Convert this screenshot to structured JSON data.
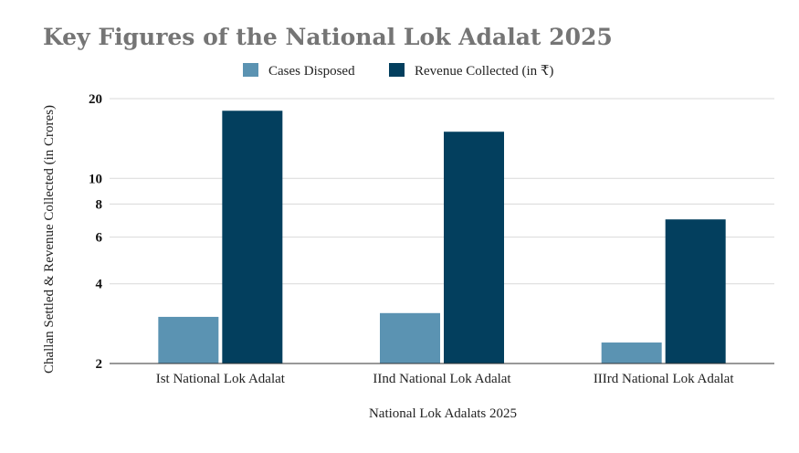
{
  "chart_data": {
    "type": "bar",
    "title": "Key Figures of the National Lok Adalat 2025",
    "categories": [
      "Ist National Lok Adalat",
      "IInd National Lok Adalat",
      "IIIrd National Lok Adalat"
    ],
    "series": [
      {
        "name": "Cases Disposed",
        "color": "#5b93b2",
        "values": [
          3.0,
          3.1,
          2.4
        ]
      },
      {
        "name": "Revenue Collected (in ₹)",
        "color": "#033f5e",
        "values": [
          18,
          15,
          7
        ]
      }
    ],
    "xlabel": "National Lok Adalats 2025",
    "ylabel": "Challan Settled & Revenue Collected (in Crores)",
    "yscale": "log",
    "ylim": [
      2,
      20
    ],
    "yticks": [
      2,
      4,
      6,
      8,
      10,
      20
    ],
    "grid": true,
    "legend_position": "top-center"
  }
}
